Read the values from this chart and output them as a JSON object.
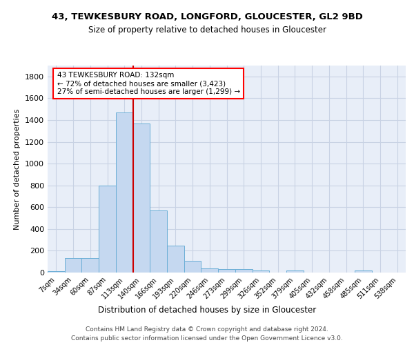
{
  "title1": "43, TEWKESBURY ROAD, LONGFORD, GLOUCESTER, GL2 9BD",
  "title2": "Size of property relative to detached houses in Gloucester",
  "xlabel": "Distribution of detached houses by size in Gloucester",
  "ylabel": "Number of detached properties",
  "bar_labels": [
    "7sqm",
    "34sqm",
    "60sqm",
    "87sqm",
    "113sqm",
    "140sqm",
    "166sqm",
    "193sqm",
    "220sqm",
    "246sqm",
    "273sqm",
    "299sqm",
    "326sqm",
    "352sqm",
    "379sqm",
    "405sqm",
    "432sqm",
    "458sqm",
    "485sqm",
    "511sqm",
    "538sqm"
  ],
  "bar_values": [
    10,
    130,
    130,
    800,
    1470,
    1370,
    570,
    250,
    110,
    35,
    30,
    30,
    20,
    0,
    20,
    0,
    0,
    0,
    20,
    0,
    0
  ],
  "bar_color": "#c5d8f0",
  "bar_edge_color": "#6aaed6",
  "background_color": "#e8eef8",
  "grid_color": "#c8d2e4",
  "vline_color": "#cc0000",
  "vline_pos": 4.5,
  "annotation_line1": "43 TEWKESBURY ROAD: 132sqm",
  "annotation_line2": "← 72% of detached houses are smaller (3,423)",
  "annotation_line3": "27% of semi-detached houses are larger (1,299) →",
  "ylim_max": 1900,
  "yticks": [
    0,
    200,
    400,
    600,
    800,
    1000,
    1200,
    1400,
    1600,
    1800
  ],
  "footer1": "Contains HM Land Registry data © Crown copyright and database right 2024.",
  "footer2": "Contains public sector information licensed under the Open Government Licence v3.0."
}
